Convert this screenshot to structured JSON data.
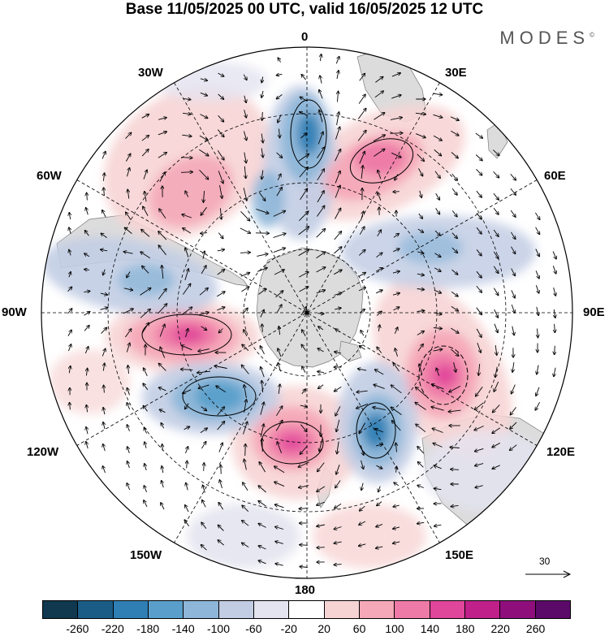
{
  "title": "Base 11/05/2025 00 UTC, valid 16/05/2025 12 UTC",
  "brand": "MODES",
  "brand_mark": "©",
  "lon_labels": {
    "top": "0",
    "bottom": "180",
    "left": "90W",
    "right": "90E",
    "nw1": "30W",
    "nw2": "60W",
    "ne1": "30E",
    "ne2": "60E",
    "sw1": "120W",
    "sw2": "150W",
    "se1": "120E",
    "se2": "150E"
  },
  "reference_vector": {
    "label": "30"
  },
  "colorbar": {
    "ticks": [
      "-260",
      "-220",
      "-180",
      "-140",
      "-100",
      "-60",
      "-20",
      "20",
      "60",
      "100",
      "140",
      "180",
      "220",
      "260"
    ],
    "colors": [
      "#10384f",
      "#1a5c86",
      "#2f7fb5",
      "#5a9fcb",
      "#8db6d8",
      "#c2cde4",
      "#e4e4f0",
      "#ffffff",
      "#f7d4d4",
      "#f4a8b8",
      "#ee7aa7",
      "#e0469a",
      "#c0208a",
      "#8e0f7c",
      "#5c0a6a"
    ]
  },
  "map_colors": {
    "land": "#dcdcdc",
    "coast": "#7a7a7a",
    "grid": "#000000"
  }
}
